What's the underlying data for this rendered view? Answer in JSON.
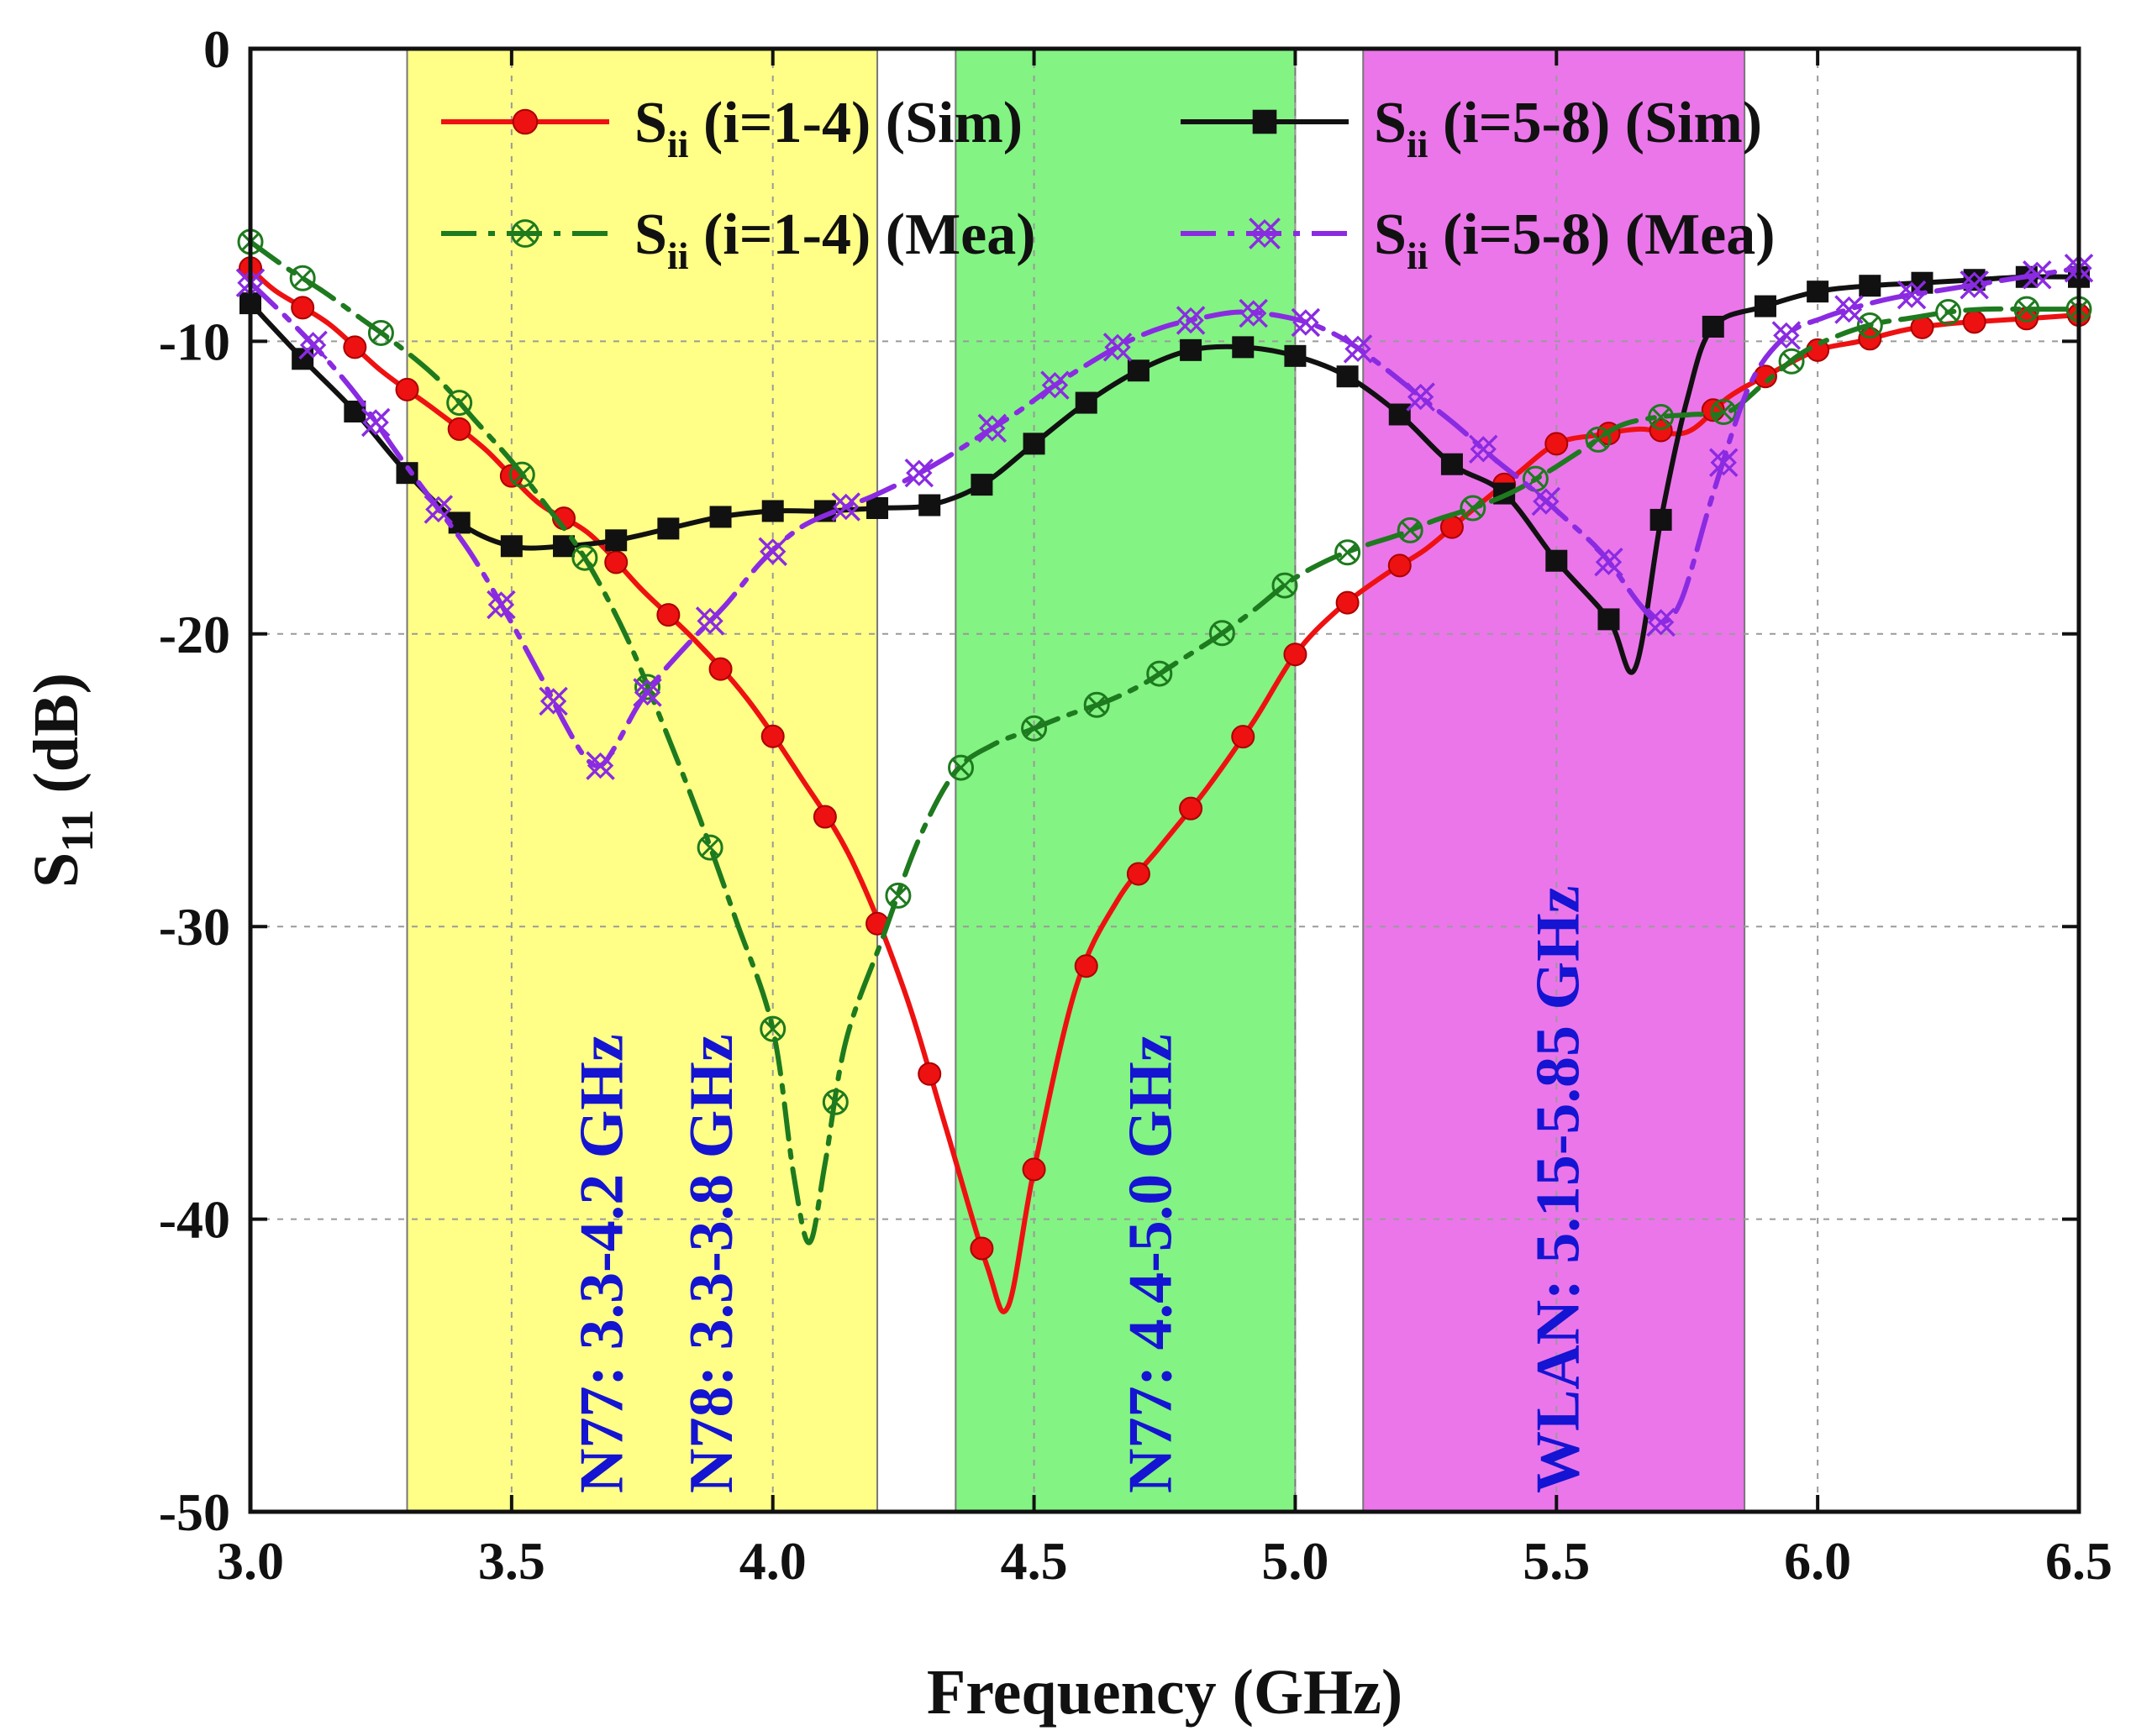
{
  "chart_data": {
    "type": "line",
    "title": "",
    "xlabel": "Frequency (GHz)",
    "ylabel_main": "S",
    "ylabel_sub": "11",
    "ylabel_tail": " (dB)",
    "xlim": [
      3.0,
      6.5
    ],
    "ylim": [
      -50,
      0
    ],
    "grid": true,
    "x_ticks": [
      3.0,
      3.5,
      4.0,
      4.5,
      5.0,
      5.5,
      6.0,
      6.5
    ],
    "x_tick_labels": [
      "3.0",
      "3.5",
      "4.0",
      "4.5",
      "5.0",
      "5.5",
      "6.0",
      "6.5"
    ],
    "y_ticks": [
      0,
      -10,
      -20,
      -30,
      -40,
      -50
    ],
    "y_tick_labels": [
      "0",
      "-10",
      "-20",
      "-30",
      "-40",
      "-50"
    ],
    "bands": [
      {
        "x0": 3.3,
        "x1": 4.2,
        "color": "#ffff7a",
        "opacity": 0.9,
        "labels": [
          {
            "text": "N77: 3.3-4.2 GHz",
            "x": 3.67,
            "color": "#1414d2"
          },
          {
            "text": "N78: 3.3-3.8 GHz",
            "x": 3.88,
            "color": "#1414d2"
          }
        ]
      },
      {
        "x0": 4.35,
        "x1": 5.0,
        "color": "#7cf27c",
        "opacity": 0.95,
        "labels": [
          {
            "text": "N77: 4.4-5.0 GHz",
            "x": 4.72,
            "color": "#1414d2"
          }
        ]
      },
      {
        "x0": 5.13,
        "x1": 5.86,
        "color": "#ea6fe9",
        "opacity": 0.95,
        "labels": [
          {
            "text": "WLAN: 5.15-5.85 GHz",
            "x": 5.5,
            "color": "#1414d2"
          }
        ]
      }
    ],
    "legend_position": "top",
    "series": [
      {
        "name": "S",
        "name_sub": "ii",
        "name_tail": " (i=1-4) (Sim)",
        "color": "#ee1111",
        "dash": "",
        "marker": "circle",
        "x": [
          3.0,
          3.05,
          3.15,
          3.25,
          3.35,
          3.45,
          3.55,
          3.65,
          3.75,
          3.85,
          3.95,
          4.05,
          4.15,
          4.25,
          4.33,
          4.41,
          4.45,
          4.5,
          4.58,
          4.66,
          4.74,
          4.83,
          4.92,
          5.0,
          5.08,
          5.17,
          5.25,
          5.33,
          5.42,
          5.5,
          5.58,
          5.66,
          5.75,
          5.83,
          5.92,
          6.0,
          6.08,
          6.17,
          6.25,
          6.33,
          6.42,
          6.5
        ],
        "y": [
          -7.5,
          -8.3,
          -9.4,
          -11.0,
          -12.3,
          -13.7,
          -15.5,
          -16.6,
          -18.5,
          -20.2,
          -22.2,
          -24.8,
          -27.7,
          -32.1,
          -36.8,
          -41.6,
          -43.0,
          -38.3,
          -32.1,
          -29.1,
          -27.3,
          -25.3,
          -23.0,
          -20.7,
          -19.2,
          -18.0,
          -17.1,
          -15.9,
          -14.6,
          -13.5,
          -13.2,
          -13.0,
          -13.1,
          -11.9,
          -11.0,
          -10.3,
          -10.0,
          -9.6,
          -9.4,
          -9.3,
          -9.2,
          -9.1
        ],
        "markers": [
          3.0,
          3.1,
          3.2,
          3.3,
          3.4,
          3.5,
          3.6,
          3.7,
          3.8,
          3.9,
          4.0,
          4.1,
          4.2,
          4.3,
          4.4,
          4.5,
          4.6,
          4.7,
          4.8,
          4.9,
          5.0,
          5.1,
          5.2,
          5.3,
          5.4,
          5.5,
          5.6,
          5.7,
          5.8,
          5.9,
          6.0,
          6.1,
          6.2,
          6.3,
          6.4,
          6.5
        ]
      },
      {
        "name": "S",
        "name_sub": "ii",
        "name_tail": " (i=5-8) (Sim)",
        "color": "#111111",
        "dash": "",
        "marker": "square",
        "x": [
          3.0,
          3.1,
          3.2,
          3.3,
          3.4,
          3.5,
          3.6,
          3.7,
          3.8,
          3.9,
          4.0,
          4.1,
          4.2,
          4.3,
          4.4,
          4.5,
          4.6,
          4.7,
          4.8,
          4.9,
          5.0,
          5.1,
          5.2,
          5.3,
          5.4,
          5.5,
          5.6,
          5.65,
          5.7,
          5.75,
          5.8,
          5.9,
          6.0,
          6.1,
          6.2,
          6.3,
          6.4,
          6.5
        ],
        "y": [
          -8.7,
          -10.6,
          -12.4,
          -14.5,
          -16.2,
          -17.0,
          -17.0,
          -16.8,
          -16.4,
          -16.0,
          -15.8,
          -15.8,
          -15.7,
          -15.6,
          -14.9,
          -13.5,
          -12.1,
          -11.0,
          -10.3,
          -10.2,
          -10.5,
          -11.2,
          -12.5,
          -14.2,
          -15.2,
          -17.5,
          -19.5,
          -21.2,
          -16.1,
          -12.0,
          -9.5,
          -8.8,
          -8.3,
          -8.1,
          -8.0,
          -7.9,
          -7.8,
          -7.8
        ],
        "markers": [
          3.0,
          3.1,
          3.2,
          3.3,
          3.4,
          3.5,
          3.6,
          3.7,
          3.8,
          3.9,
          4.0,
          4.1,
          4.2,
          4.3,
          4.4,
          4.5,
          4.6,
          4.7,
          4.8,
          4.9,
          5.0,
          5.1,
          5.2,
          5.3,
          5.4,
          5.5,
          5.6,
          5.7,
          5.8,
          5.9,
          6.0,
          6.1,
          6.2,
          6.3,
          6.4,
          6.5
        ]
      },
      {
        "name": "S",
        "name_sub": "ii",
        "name_tail": " (i=1-4) (Mea)",
        "color": "#1e7a1e",
        "dash": "42 14 8 14",
        "marker": "crossed-circle",
        "x": [
          3.0,
          3.07,
          3.14,
          3.21,
          3.28,
          3.36,
          3.43,
          3.5,
          3.57,
          3.64,
          3.72,
          3.79,
          3.86,
          3.93,
          4.0,
          4.04,
          4.07,
          4.1,
          4.14,
          4.21,
          4.28,
          4.35,
          4.42,
          4.49,
          4.56,
          4.64,
          4.71,
          4.78,
          4.85,
          4.92,
          4.99,
          5.06,
          5.13,
          5.2,
          5.27,
          5.34,
          5.41,
          5.48,
          5.55,
          5.62,
          5.69,
          5.76,
          5.83,
          5.9,
          5.97,
          6.04,
          6.11,
          6.18,
          6.25,
          6.32,
          6.39,
          6.46,
          6.5
        ],
        "y": [
          -6.6,
          -7.5,
          -8.3,
          -9.2,
          -10.1,
          -11.3,
          -12.7,
          -14.1,
          -15.7,
          -17.4,
          -20.1,
          -23.1,
          -26.3,
          -29.8,
          -33.5,
          -38.5,
          -40.8,
          -38.1,
          -33.9,
          -30.4,
          -27.0,
          -24.7,
          -23.8,
          -23.3,
          -22.8,
          -22.3,
          -21.7,
          -20.9,
          -20.1,
          -19.2,
          -18.2,
          -17.5,
          -17.0,
          -16.6,
          -16.1,
          -15.7,
          -15.2,
          -14.5,
          -13.7,
          -12.9,
          -12.6,
          -12.5,
          -12.4,
          -11.4,
          -10.4,
          -9.8,
          -9.4,
          -9.2,
          -9.0,
          -8.9,
          -8.9,
          -8.9,
          -8.9
        ],
        "markers": [
          3.0,
          3.1,
          3.25,
          3.4,
          3.52,
          3.64,
          3.76,
          3.88,
          4.0,
          4.12,
          4.24,
          4.36,
          4.5,
          4.62,
          4.74,
          4.86,
          4.98,
          5.1,
          5.22,
          5.34,
          5.46,
          5.58,
          5.7,
          5.82,
          5.95,
          6.1,
          6.25,
          6.4,
          6.5
        ]
      },
      {
        "name": "S",
        "name_sub": "ii",
        "name_tail": " (i=5-8) (Mea)",
        "color": "#8a2be2",
        "dash": "42 14 8 14",
        "marker": "crossed-x",
        "x": [
          3.0,
          3.07,
          3.14,
          3.21,
          3.28,
          3.35,
          3.42,
          3.49,
          3.56,
          3.6,
          3.64,
          3.67,
          3.7,
          3.74,
          3.78,
          3.84,
          3.91,
          3.98,
          4.05,
          4.12,
          4.19,
          4.26,
          4.33,
          4.4,
          4.47,
          4.54,
          4.61,
          4.68,
          4.75,
          4.82,
          4.89,
          4.96,
          5.03,
          5.1,
          5.17,
          5.24,
          5.31,
          5.38,
          5.45,
          5.52,
          5.59,
          5.66,
          5.7,
          5.74,
          5.8,
          5.87,
          5.94,
          6.01,
          6.08,
          6.15,
          6.22,
          6.29,
          6.36,
          6.43,
          6.5
        ],
        "y": [
          -8.0,
          -9.2,
          -10.5,
          -12.0,
          -13.8,
          -15.5,
          -17.2,
          -19.3,
          -21.6,
          -23.0,
          -24.2,
          -24.5,
          -23.8,
          -22.5,
          -21.5,
          -20.3,
          -19.0,
          -17.5,
          -16.4,
          -15.8,
          -15.3,
          -14.7,
          -14.0,
          -13.2,
          -12.4,
          -11.5,
          -10.7,
          -10.0,
          -9.5,
          -9.2,
          -9.0,
          -9.1,
          -9.4,
          -10.0,
          -10.9,
          -11.9,
          -12.9,
          -14.0,
          -15.0,
          -16.1,
          -17.3,
          -19.0,
          -19.6,
          -18.8,
          -15.2,
          -11.5,
          -9.8,
          -9.2,
          -8.8,
          -8.5,
          -8.3,
          -8.1,
          -7.9,
          -7.7,
          -7.5
        ],
        "markers": [
          3.0,
          3.12,
          3.24,
          3.36,
          3.48,
          3.58,
          3.67,
          3.76,
          3.88,
          4.0,
          4.14,
          4.28,
          4.42,
          4.54,
          4.66,
          4.8,
          4.92,
          5.02,
          5.12,
          5.24,
          5.36,
          5.48,
          5.6,
          5.7,
          5.82,
          5.94,
          6.06,
          6.18,
          6.3,
          6.42,
          6.5
        ]
      }
    ]
  }
}
